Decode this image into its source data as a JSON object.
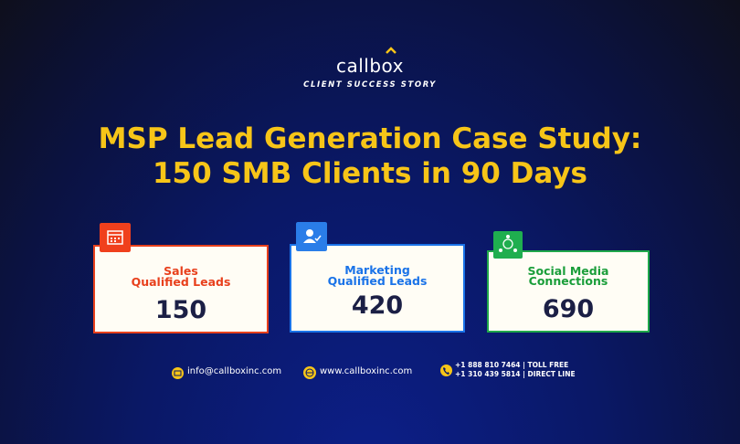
{
  "header": {
    "logo": "callbox",
    "tagline": "CLIENT SUCCESS STORY"
  },
  "title": {
    "lines": [
      "MSP Lead Generation Case Study:",
      "150 SMB Clients in 90 Days"
    ]
  },
  "cards": [
    {
      "label_lines": [
        "Sales",
        "Qualified Leads"
      ],
      "value": 150
    },
    {
      "label_lines": [
        "Marketing",
        "Qualified Leads"
      ],
      "value": 420
    },
    {
      "label_lines": [
        "Social Media",
        "Connections"
      ],
      "value": 690
    }
  ],
  "footer": {
    "email": "info@callboxinc.com",
    "website": "www.callboxinc.com",
    "phones": [
      "+1 888 810 7464 | TOLL FREE",
      "+1 310 439 5814 | DIRECT LINE"
    ]
  }
}
